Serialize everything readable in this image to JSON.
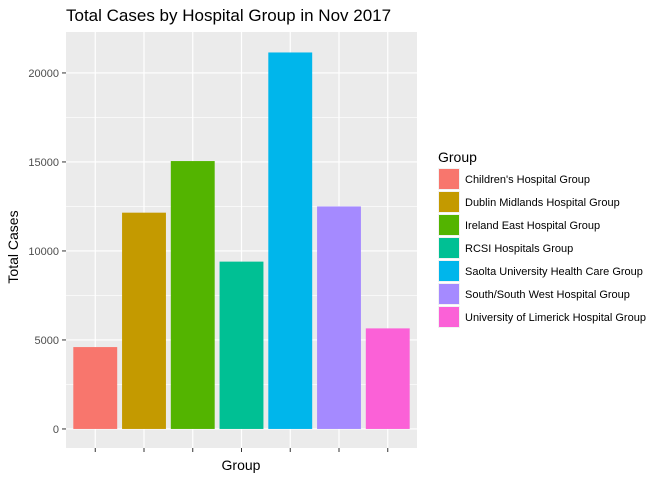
{
  "chart_data": {
    "type": "bar",
    "title": "Total Cases by Hospital Group in Nov 2017",
    "xlabel": "Group",
    "ylabel": "Total Cases",
    "ylim": [
      -1070,
      22300
    ],
    "yticks": [
      0,
      5000,
      10000,
      15000,
      20000
    ],
    "ytick_labels": [
      "0",
      "5000",
      "10000",
      "15000",
      "20000"
    ],
    "grid": true,
    "legend_placement": "right",
    "legend_title": "Group",
    "categories": [
      "Children's Hospital Group",
      "Dublin Midlands Hospital Group",
      "Ireland East Hospital Group",
      "RCSI  Hospitals Group",
      "Saolta University Health Care Group",
      "South/South West Hospital Group",
      "University of Limerick Hospital Group"
    ],
    "values": [
      4600,
      12150,
      15050,
      9400,
      21150,
      12500,
      5650
    ],
    "colors": [
      "#F8766D",
      "#C49A00",
      "#53B400",
      "#00C094",
      "#00B6EB",
      "#A58AFF",
      "#FB61D7"
    ],
    "panel_background": "#EBEBEB",
    "grid_color": "#FFFFFF"
  }
}
